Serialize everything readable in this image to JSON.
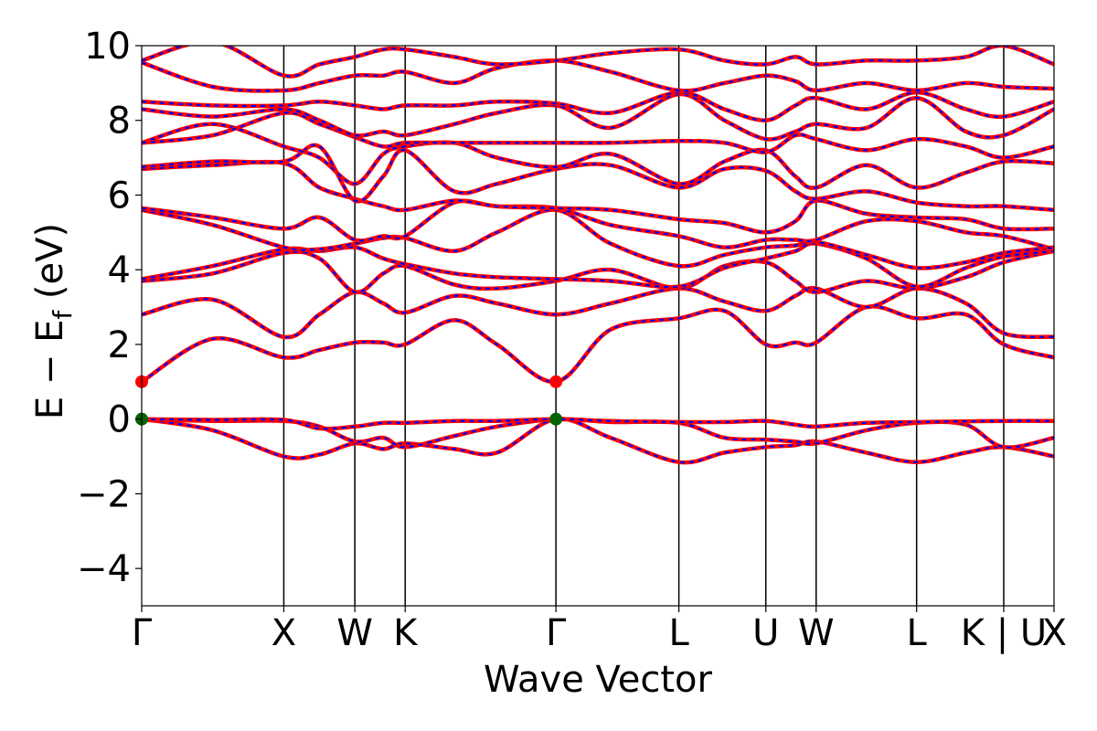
{
  "chart_data": {
    "type": "line",
    "title": "",
    "xlabel": "Wave Vector",
    "ylabel": "E − E_f (eV)",
    "ylabel_parts": {
      "lead": "E − E",
      "sub": "f",
      "tail": " (eV)"
    },
    "ylim": [
      -5,
      10
    ],
    "yticks": [
      -4,
      -2,
      0,
      2,
      4,
      6,
      8,
      10
    ],
    "ytick_labels": [
      "−4",
      "−2",
      "0",
      "2",
      "4",
      "6",
      "8",
      "10"
    ],
    "kpath": [
      "Γ",
      "X",
      "W",
      "K",
      "Γ",
      "L",
      "U",
      "W",
      "L",
      "K | U",
      "X"
    ],
    "kpath_positions": [
      0,
      1.0,
      1.5,
      1.854,
      2.915,
      3.78,
      4.392,
      4.746,
      5.453,
      6.066,
      6.42
    ],
    "xticks": [
      {
        "label": "Γ",
        "x": 0
      },
      {
        "label": "X",
        "x": 1.0
      },
      {
        "label": "W",
        "x": 1.5
      },
      {
        "label": "K",
        "x": 1.854
      },
      {
        "label": "Γ",
        "x": 2.915
      },
      {
        "label": "L",
        "x": 3.78
      },
      {
        "label": "U",
        "x": 4.392
      },
      {
        "label": "W",
        "x": 4.746
      },
      {
        "label": "L",
        "x": 5.453
      },
      {
        "label": "K | U",
        "x": 6.066
      },
      {
        "label": "X",
        "x": 6.42
      }
    ],
    "grid": false,
    "legend": "none",
    "vertical_lines_at_kpoints": true,
    "line_styles": {
      "dft": "#ff0000",
      "overlay": "#0000ff (dashed)"
    },
    "colors": {
      "red_band": "#ff0000",
      "blue_dash": "#0000ff",
      "vbm_marker": "#006400",
      "cbm_marker": "#ff0000"
    },
    "markers": [
      {
        "name": "CBM",
        "x": 0,
        "y": 1.0,
        "color": "#ff0000"
      },
      {
        "name": "CBM",
        "x": 2.915,
        "y": 1.0,
        "color": "#ff0000"
      },
      {
        "name": "VBM",
        "x": 0,
        "y": 0.0,
        "color": "#006400"
      },
      {
        "name": "VBM",
        "x": 2.915,
        "y": 0.0,
        "color": "#006400"
      }
    ],
    "series": [
      {
        "x": [
          0,
          0.5,
          1.0,
          1.25,
          1.5,
          1.7,
          1.854,
          2.2,
          2.5,
          2.915,
          3.3,
          3.78,
          4.1,
          4.392,
          4.6,
          4.746,
          5.1,
          5.453,
          5.8,
          6.066,
          6.42
        ],
        "values": [
          0.0,
          -0.3,
          -1.0,
          -0.95,
          -0.65,
          -0.8,
          -0.65,
          -0.8,
          -0.9,
          0.0,
          -0.5,
          -1.15,
          -0.9,
          -0.75,
          -0.7,
          -0.6,
          -0.9,
          -1.15,
          -0.9,
          -0.75,
          -1.0
        ]
      },
      {
        "x": [
          0,
          0.5,
          1.0,
          1.25,
          1.5,
          1.7,
          1.854,
          2.2,
          2.5,
          2.915,
          3.3,
          3.78,
          4.1,
          4.392,
          4.6,
          4.746,
          5.1,
          5.453,
          5.8,
          6.066,
          6.42
        ],
        "values": [
          0.0,
          -0.05,
          -0.05,
          -0.2,
          -0.6,
          -0.5,
          -0.75,
          -0.45,
          -0.2,
          0.0,
          -0.08,
          -0.1,
          -0.5,
          -0.55,
          -0.6,
          -0.65,
          -0.3,
          -0.1,
          -0.15,
          -0.75,
          -0.5
        ]
      },
      {
        "x": [
          0,
          0.5,
          1.0,
          1.25,
          1.5,
          1.7,
          1.854,
          2.2,
          2.5,
          2.915,
          3.3,
          3.78,
          4.1,
          4.392,
          4.6,
          4.746,
          5.1,
          5.453,
          5.8,
          6.066,
          6.42
        ],
        "values": [
          0.0,
          -0.02,
          -0.02,
          -0.25,
          -0.2,
          -0.1,
          -0.1,
          -0.05,
          -0.05,
          0.0,
          -0.05,
          -0.08,
          -0.08,
          -0.05,
          -0.15,
          -0.2,
          -0.1,
          -0.08,
          -0.06,
          -0.05,
          -0.05
        ]
      },
      {
        "x": [
          0,
          0.5,
          1.0,
          1.25,
          1.5,
          1.7,
          1.854,
          2.2,
          2.5,
          2.915,
          3.3,
          3.78,
          4.1,
          4.392,
          4.6,
          4.746,
          5.1,
          5.453,
          5.8,
          6.066,
          6.42
        ],
        "values": [
          1.0,
          2.15,
          1.65,
          1.85,
          2.05,
          2.05,
          2.0,
          2.65,
          2.0,
          1.0,
          2.4,
          2.7,
          2.9,
          2.0,
          2.05,
          2.05,
          3.0,
          2.7,
          2.8,
          2.0,
          1.65
        ]
      },
      {
        "x": [
          0,
          0.5,
          1.0,
          1.25,
          1.5,
          1.7,
          1.854,
          2.2,
          2.5,
          2.915,
          3.3,
          3.78,
          4.1,
          4.392,
          4.6,
          4.746,
          5.1,
          5.453,
          5.8,
          6.066,
          6.42
        ],
        "values": [
          2.8,
          3.2,
          2.2,
          2.8,
          3.4,
          3.1,
          2.85,
          3.3,
          3.1,
          2.8,
          3.1,
          3.5,
          3.15,
          2.9,
          3.3,
          3.5,
          3.0,
          3.5,
          3.1,
          2.3,
          2.2
        ]
      },
      {
        "x": [
          0,
          0.5,
          1.0,
          1.25,
          1.5,
          1.7,
          1.854,
          2.2,
          2.5,
          2.915,
          3.3,
          3.78,
          4.1,
          4.392,
          4.6,
          4.746,
          5.1,
          5.453,
          5.8,
          6.066,
          6.42
        ],
        "values": [
          3.7,
          3.9,
          4.45,
          4.3,
          3.4,
          3.9,
          4.1,
          3.6,
          3.5,
          3.7,
          4.0,
          3.5,
          4.1,
          4.2,
          3.7,
          3.4,
          3.7,
          3.5,
          3.8,
          4.2,
          4.5
        ]
      },
      {
        "x": [
          0,
          0.5,
          1.0,
          1.25,
          1.5,
          1.7,
          1.854,
          2.2,
          2.5,
          2.915,
          3.3,
          3.78,
          4.1,
          4.392,
          4.6,
          4.746,
          5.1,
          5.453,
          5.8,
          6.066,
          6.42
        ],
        "values": [
          3.75,
          4.1,
          4.55,
          4.5,
          4.6,
          4.3,
          4.15,
          3.9,
          3.8,
          3.75,
          3.7,
          3.55,
          4.05,
          4.3,
          4.5,
          4.7,
          4.3,
          3.55,
          4.05,
          4.35,
          4.5
        ]
      },
      {
        "x": [
          0,
          0.5,
          1.0,
          1.25,
          1.5,
          1.7,
          1.854,
          2.2,
          2.5,
          2.915,
          3.3,
          3.78,
          4.1,
          4.392,
          4.6,
          4.746,
          5.1,
          5.453,
          5.8,
          6.066,
          6.42
        ],
        "values": [
          5.6,
          5.2,
          4.6,
          4.55,
          4.7,
          4.85,
          4.85,
          4.5,
          5.0,
          5.6,
          4.7,
          4.1,
          4.4,
          4.6,
          4.65,
          4.75,
          4.4,
          4.05,
          4.2,
          4.45,
          4.6
        ]
      },
      {
        "x": [
          0,
          0.5,
          1.0,
          1.25,
          1.5,
          1.7,
          1.854,
          2.2,
          2.5,
          2.915,
          3.3,
          3.78,
          4.1,
          4.392,
          4.6,
          4.746,
          5.1,
          5.453,
          5.8,
          6.066,
          6.42
        ],
        "values": [
          5.65,
          5.4,
          5.1,
          5.4,
          4.8,
          4.9,
          4.9,
          5.8,
          5.7,
          5.65,
          5.2,
          4.9,
          4.6,
          4.8,
          4.8,
          4.8,
          5.3,
          5.3,
          5.0,
          4.9,
          4.55
        ]
      },
      {
        "x": [
          0,
          0.5,
          1.0,
          1.25,
          1.5,
          1.7,
          1.854,
          2.2,
          2.5,
          2.915,
          3.3,
          3.78,
          4.1,
          4.392,
          4.6,
          4.746,
          5.1,
          5.453,
          5.8,
          6.066,
          6.42
        ],
        "values": [
          6.7,
          6.8,
          6.85,
          6.2,
          5.9,
          5.7,
          5.6,
          5.85,
          5.7,
          5.65,
          5.6,
          5.35,
          5.25,
          5.0,
          5.3,
          5.85,
          5.5,
          5.4,
          5.35,
          5.1,
          5.1
        ]
      },
      {
        "x": [
          0,
          0.5,
          1.0,
          1.25,
          1.5,
          1.7,
          1.854,
          2.2,
          2.5,
          2.915,
          3.3,
          3.78,
          4.1,
          4.392,
          4.6,
          4.746,
          5.1,
          5.453,
          5.8,
          6.066,
          6.42
        ],
        "values": [
          6.75,
          6.9,
          6.9,
          7.3,
          5.85,
          6.5,
          7.2,
          6.1,
          6.3,
          6.7,
          6.8,
          6.2,
          6.7,
          6.65,
          6.1,
          5.9,
          6.1,
          5.8,
          5.7,
          5.7,
          5.6
        ]
      },
      {
        "x": [
          0,
          0.5,
          1.0,
          1.25,
          1.5,
          1.7,
          1.854,
          2.2,
          2.5,
          2.915,
          3.3,
          3.78,
          4.1,
          4.392,
          4.6,
          4.746,
          5.1,
          5.453,
          5.8,
          6.066,
          6.42
        ],
        "values": [
          7.4,
          7.9,
          7.3,
          7.0,
          6.3,
          7.1,
          7.3,
          7.4,
          7.0,
          6.75,
          7.1,
          6.3,
          6.9,
          7.2,
          6.5,
          6.2,
          6.8,
          6.2,
          6.6,
          6.9,
          6.85
        ]
      },
      {
        "x": [
          0,
          0.5,
          1.0,
          1.25,
          1.5,
          1.7,
          1.854,
          2.2,
          2.5,
          2.915,
          3.3,
          3.78,
          4.1,
          4.392,
          4.6,
          4.746,
          5.1,
          5.453,
          5.8,
          6.066,
          6.42
        ],
        "values": [
          7.4,
          7.6,
          8.2,
          7.9,
          7.55,
          7.3,
          7.4,
          7.4,
          7.4,
          7.4,
          7.4,
          7.45,
          7.4,
          7.15,
          7.6,
          7.5,
          7.2,
          7.5,
          7.3,
          7.0,
          7.3
        ]
      },
      {
        "x": [
          0,
          0.5,
          1.0,
          1.25,
          1.5,
          1.7,
          1.854,
          2.2,
          2.5,
          2.915,
          3.3,
          3.78,
          4.1,
          4.392,
          4.6,
          4.746,
          5.1,
          5.453,
          5.8,
          6.066,
          6.42
        ],
        "values": [
          8.3,
          8.1,
          8.3,
          8.0,
          7.6,
          7.7,
          7.6,
          7.9,
          8.2,
          8.4,
          7.8,
          8.7,
          8.0,
          7.5,
          7.7,
          7.9,
          7.8,
          8.6,
          7.7,
          7.6,
          8.3
        ]
      },
      {
        "x": [
          0,
          0.5,
          1.0,
          1.25,
          1.5,
          1.7,
          1.854,
          2.2,
          2.5,
          2.915,
          3.3,
          3.78,
          4.1,
          4.392,
          4.6,
          4.746,
          5.1,
          5.453,
          5.8,
          6.066,
          6.42
        ],
        "values": [
          8.5,
          8.4,
          8.4,
          8.5,
          8.4,
          8.3,
          8.4,
          8.4,
          8.5,
          8.45,
          8.2,
          8.75,
          8.3,
          8.0,
          8.4,
          8.6,
          8.3,
          8.75,
          8.3,
          8.1,
          8.5
        ]
      },
      {
        "x": [
          0,
          0.5,
          1.0,
          1.25,
          1.5,
          1.7,
          1.854,
          2.2,
          2.5,
          2.915,
          3.3,
          3.78,
          4.1,
          4.392,
          4.6,
          4.746,
          5.1,
          5.453,
          5.8,
          6.066,
          6.42
        ],
        "values": [
          9.55,
          8.9,
          8.8,
          9.0,
          9.2,
          9.2,
          9.3,
          9.0,
          9.4,
          9.6,
          9.3,
          8.8,
          9.0,
          9.2,
          9.05,
          8.8,
          9.0,
          8.8,
          9.0,
          8.9,
          8.85
        ]
      },
      {
        "x": [
          0,
          0.5,
          1.0,
          1.25,
          1.5,
          1.7,
          1.854,
          2.2,
          2.5,
          2.915,
          3.3,
          3.78,
          4.1,
          4.392,
          4.6,
          4.746,
          5.1,
          5.453,
          5.8,
          6.066,
          6.42
        ],
        "values": [
          9.6,
          10.1,
          9.2,
          9.5,
          9.7,
          9.9,
          9.9,
          9.7,
          9.5,
          9.6,
          9.8,
          9.9,
          9.6,
          9.5,
          9.7,
          9.5,
          9.6,
          9.6,
          9.7,
          10.0,
          9.5
        ]
      }
    ]
  }
}
